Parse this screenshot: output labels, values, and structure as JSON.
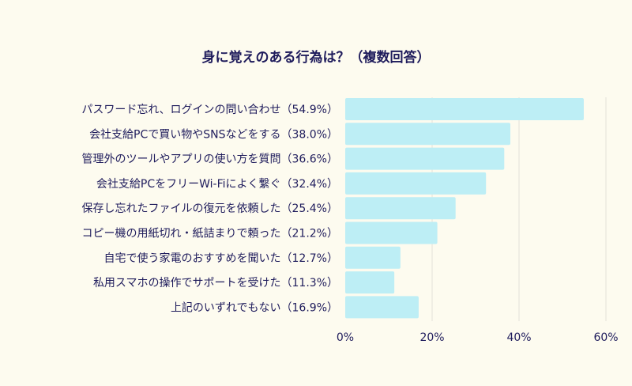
{
  "chart_data": {
    "type": "bar",
    "orientation": "horizontal",
    "title": "身に覚えのある行為は？（複数回答）",
    "categories": [
      "パスワード忘れ、ログインの問い合わせ（54.9%）",
      "会社支給PCで買い物やSNSなどをする（38.0%）",
      "管理外のツールやアプリの使い方を質問（36.6%）",
      "会社支給PCをフリーWi-Fiによく繋ぐ（32.4%）",
      "保存し忘れたファイルの復元を依頼した（25.4%）",
      "コピー機の用紙切れ・紙詰まりで頼った（21.2%）",
      "自宅で使う家電のおすすめを聞いた（12.7%）",
      "私用スマホの操作でサポートを受けた（11.3%）",
      "上記のいずれでもない（16.9%）"
    ],
    "values": [
      54.9,
      38.0,
      36.6,
      32.4,
      25.4,
      21.2,
      12.7,
      11.3,
      16.9
    ],
    "xlim": [
      0,
      60
    ],
    "xticks": [
      0,
      20,
      40,
      60
    ],
    "xtick_labels": [
      "0%",
      "20%",
      "40%",
      "60%"
    ],
    "grid": true,
    "bar_color": "#bdeef5",
    "grid_color": "#e4e2da",
    "text_color": "#1f1c5c"
  }
}
